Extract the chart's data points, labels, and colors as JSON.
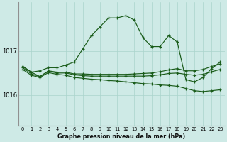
{
  "title": "Graphe pression niveau de la mer (hPa)",
  "background_color": "#ceeae6",
  "grid_color": "#aad4cc",
  "line_color": "#1a5c1a",
  "x_labels": [
    "0",
    "1",
    "2",
    "3",
    "4",
    "5",
    "6",
    "7",
    "8",
    "9",
    "10",
    "11",
    "12",
    "13",
    "14",
    "15",
    "16",
    "17",
    "18",
    "19",
    "20",
    "21",
    "22",
    "23"
  ],
  "yticks": [
    1016,
    1017
  ],
  "ylim": [
    1015.3,
    1018.1
  ],
  "xlim": [
    -0.5,
    23.5
  ],
  "line_main": [
    1016.65,
    1016.52,
    1016.55,
    1016.62,
    1016.62,
    1016.68,
    1016.75,
    1017.05,
    1017.35,
    1017.55,
    1017.75,
    1017.75,
    1017.8,
    1017.7,
    1017.3,
    1017.1,
    1017.1,
    1017.35,
    1017.2,
    1016.35,
    1016.3,
    1016.4,
    1016.6,
    1016.75
  ],
  "line_flat1": [
    1016.65,
    1016.52,
    1016.42,
    1016.55,
    1016.52,
    1016.52,
    1016.48,
    1016.48,
    1016.47,
    1016.47,
    1016.47,
    1016.47,
    1016.47,
    1016.48,
    1016.49,
    1016.5,
    1016.53,
    1016.57,
    1016.6,
    1016.55,
    1016.55,
    1016.58,
    1016.65,
    1016.7
  ],
  "line_flat2": [
    1016.62,
    1016.48,
    1016.42,
    1016.54,
    1016.5,
    1016.5,
    1016.46,
    1016.44,
    1016.43,
    1016.43,
    1016.43,
    1016.43,
    1016.43,
    1016.43,
    1016.43,
    1016.44,
    1016.46,
    1016.49,
    1016.5,
    1016.47,
    1016.45,
    1016.47,
    1016.53,
    1016.58
  ],
  "line_flat3": [
    1016.58,
    1016.45,
    1016.4,
    1016.51,
    1016.47,
    1016.45,
    1016.4,
    1016.38,
    1016.36,
    1016.35,
    1016.33,
    1016.32,
    1016.3,
    1016.28,
    1016.26,
    1016.25,
    1016.23,
    1016.22,
    1016.2,
    1016.15,
    1016.1,
    1016.08,
    1016.1,
    1016.12
  ]
}
